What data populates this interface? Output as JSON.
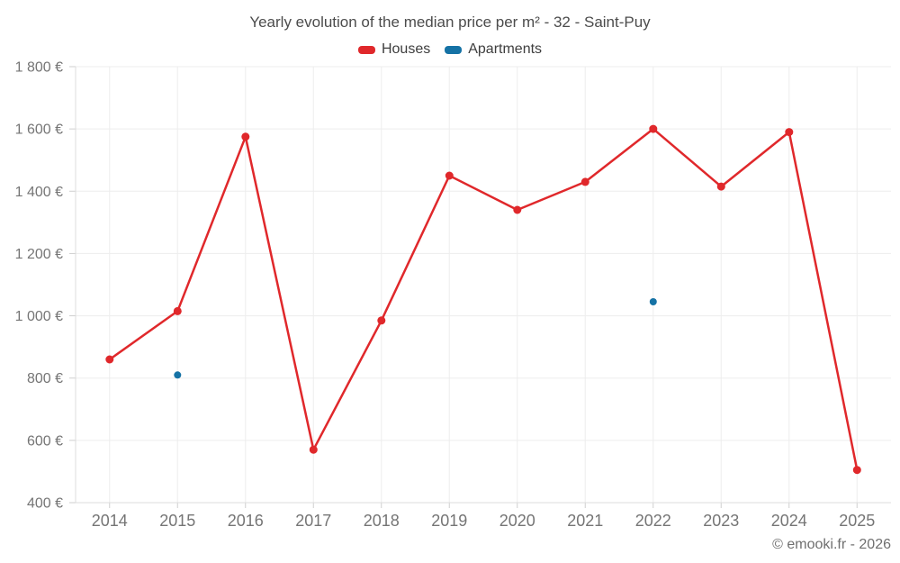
{
  "chart_data": {
    "type": "line",
    "title": "Yearly evolution of the median price per m² - 32 - Saint-Puy",
    "categories": [
      "2014",
      "2015",
      "2016",
      "2017",
      "2018",
      "2019",
      "2020",
      "2021",
      "2022",
      "2023",
      "2024",
      "2025"
    ],
    "series": [
      {
        "name": "Houses",
        "type": "line",
        "color": "#e0282b",
        "values": [
          860,
          1015,
          1575,
          570,
          985,
          1450,
          1340,
          1430,
          1600,
          1415,
          1590,
          505
        ]
      },
      {
        "name": "Apartments",
        "type": "scatter",
        "color": "#1572a5",
        "values": [
          null,
          810,
          null,
          null,
          null,
          null,
          null,
          null,
          1045,
          null,
          null,
          null
        ]
      }
    ],
    "ylim": [
      400,
      1800
    ],
    "y_tick_step": 200,
    "y_tick_suffix": " €",
    "grid": true,
    "legend_position": "top"
  },
  "footer": {
    "credit": "© emooki.fr - 2026"
  },
  "colors": {
    "grid_line": "#ededed",
    "axis_line": "#dcdcdc",
    "tick_mark": "#cfcfcf",
    "tick_label": "#757575",
    "title_text": "#4c4c4c"
  }
}
